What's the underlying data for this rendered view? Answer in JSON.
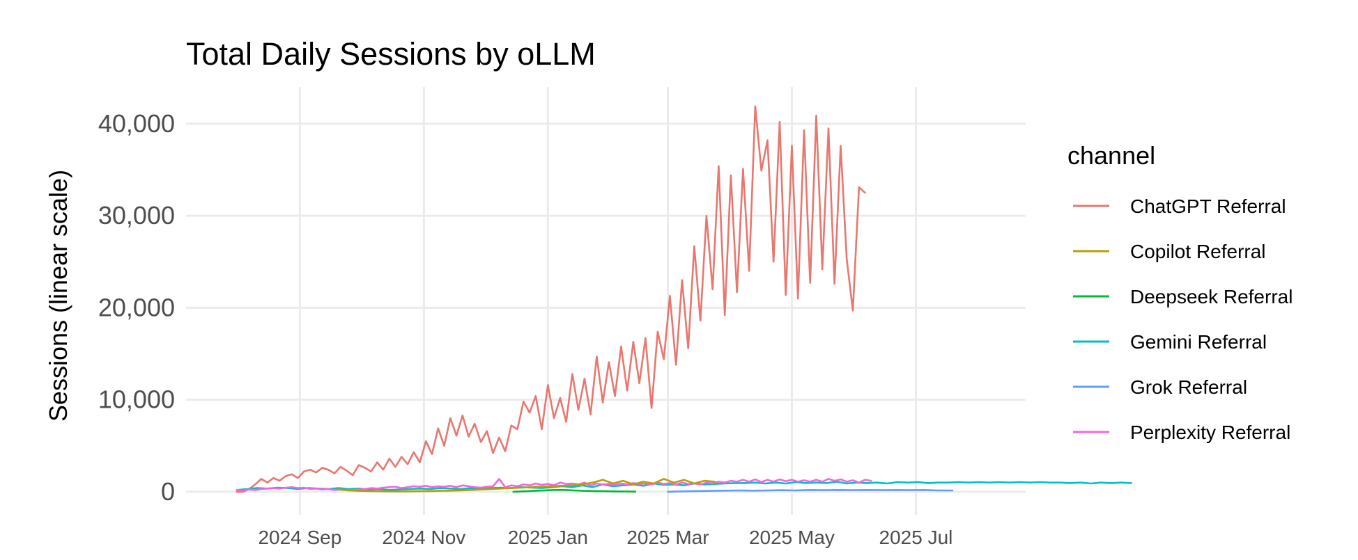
{
  "chart_data": {
    "type": "line",
    "title": "Total Daily Sessions by oLLM",
    "xlabel": "",
    "ylabel": "Sessions (linear scale)",
    "x_ticks": [
      "2024 Sep",
      "2024 Nov",
      "2025 Jan",
      "2025 Mar",
      "2025 May",
      "2025 Jul"
    ],
    "y_ticks": [
      0,
      10000,
      20000,
      30000,
      40000
    ],
    "y_tick_labels": [
      "0",
      "10,000",
      "20,000",
      "30,000",
      "40,000"
    ],
    "ylim": [
      -2500,
      44000
    ],
    "xlim": [
      "2024-07-07",
      "2025-08-24"
    ],
    "grid": true,
    "legend": {
      "title": "channel",
      "position": "right",
      "entries": [
        "ChatGPT Referral",
        "Copilot Referral",
        "Deepseek Referral",
        "Gemini Referral",
        "Grok Referral",
        "Perplexity Referral"
      ]
    },
    "series": [
      {
        "name": "ChatGPT Referral",
        "color": "#e8776f",
        "x_start": "2024-08-01",
        "x_step_days": 3,
        "values": [
          0,
          0,
          300,
          800,
          1400,
          1000,
          1500,
          1200,
          1700,
          1900,
          1500,
          2200,
          2400,
          2100,
          2600,
          2400,
          2000,
          2700,
          2300,
          1800,
          2900,
          2600,
          2200,
          3200,
          2400,
          3600,
          2700,
          3800,
          3000,
          4300,
          3200,
          5500,
          4100,
          6900,
          5000,
          8000,
          6100,
          8300,
          6000,
          7400,
          5400,
          6600,
          4200,
          5900,
          4400,
          7200,
          6800,
          9800,
          8600,
          10400,
          6800,
          11600,
          8000,
          10200,
          7600,
          12800,
          8900,
          12300,
          8400,
          14700,
          9700,
          14100,
          10400,
          15800,
          11000,
          16300,
          11800,
          16700,
          9100,
          17400,
          14400,
          21300,
          13800,
          23000,
          15600,
          26700,
          18600,
          30000,
          22000,
          35400,
          19200,
          34400,
          21700,
          35100,
          24000,
          41900,
          34900,
          38200,
          25000,
          40200,
          21400,
          37600,
          21000,
          39300,
          22700,
          40900,
          24200,
          39500,
          22600,
          37600,
          25300,
          19700,
          33100,
          32500
        ]
      },
      {
        "name": "Copilot Referral",
        "color": "#b79f00",
        "x_start": "2024-09-20",
        "x_step_days": 5,
        "values": [
          250,
          150,
          100,
          80,
          60,
          50,
          40,
          50,
          60,
          80,
          100,
          120,
          150,
          200,
          250,
          300,
          350,
          400,
          450,
          500,
          550,
          600,
          650,
          700,
          800,
          1000,
          1300,
          900,
          1200,
          800,
          1100,
          900,
          1400,
          1000,
          1300,
          900,
          1200,
          1100
        ]
      },
      {
        "name": "Deepseek Referral",
        "color": "#00ba38",
        "x_start": "2024-12-15",
        "x_step_days": 5,
        "values": [
          0,
          50,
          100,
          150,
          200,
          200,
          150,
          100,
          80,
          60,
          40,
          30,
          20
        ]
      },
      {
        "name": "Gemini Referral",
        "color": "#00bfc4",
        "x_start": "2024-08-01",
        "x_step_days": 5,
        "values": [
          200,
          300,
          400,
          350,
          450,
          400,
          300,
          400,
          350,
          300,
          400,
          300,
          350,
          250,
          300,
          200,
          250,
          300,
          350,
          300,
          400,
          350,
          300,
          400,
          350,
          400,
          450,
          400,
          500,
          450,
          400,
          500,
          600,
          500,
          700,
          500,
          800,
          600,
          700,
          800,
          650,
          900,
          750,
          800,
          700,
          900,
          800,
          850,
          900,
          950,
          950,
          1000,
          900,
          1000,
          900,
          1050,
          950,
          1000,
          950,
          1100,
          900,
          1000,
          950,
          1000,
          900,
          1050,
          1000,
          1050,
          950,
          1000,
          1000,
          1050,
          1000,
          1050,
          1000,
          1050,
          1000,
          1050,
          1000,
          1050,
          1000,
          1000,
          950,
          1000,
          900,
          1000,
          950,
          1000,
          950
        ]
      },
      {
        "name": "Grok Referral",
        "color": "#619cff",
        "x_start": "2025-03-01",
        "x_step_days": 7,
        "values": [
          0,
          50,
          80,
          100,
          120,
          150,
          120,
          150,
          180,
          150,
          200,
          180,
          200,
          180,
          200,
          180,
          200,
          180,
          200,
          150,
          150
        ]
      },
      {
        "name": "Perplexity Referral",
        "color": "#f564e3",
        "x_start": "2024-08-01",
        "x_step_days": 3,
        "values": [
          200,
          150,
          250,
          200,
          300,
          350,
          400,
          350,
          450,
          500,
          400,
          450,
          300,
          350,
          250,
          300,
          200,
          250,
          200,
          180,
          250,
          300,
          400,
          350,
          450,
          500,
          550,
          400,
          500,
          600,
          550,
          650,
          500,
          600,
          550,
          650,
          500,
          700,
          600,
          500,
          450,
          550,
          600,
          1400,
          500,
          700,
          600,
          800,
          700,
          900,
          750,
          850,
          700,
          1000,
          850,
          900,
          800,
          1000,
          700,
          900,
          800,
          850,
          750,
          900,
          800,
          950,
          850,
          900,
          800,
          1000,
          850,
          950,
          800,
          1000,
          850,
          900,
          800,
          1000,
          900,
          1100,
          1000,
          1200,
          1100,
          1300,
          1100,
          1350,
          1050,
          1300,
          1100,
          1350,
          1150,
          1300,
          1100,
          1250,
          1100,
          1300,
          1100,
          1400,
          1200,
          1350,
          1100,
          1250,
          1000,
          1300,
          1200
        ]
      }
    ]
  }
}
